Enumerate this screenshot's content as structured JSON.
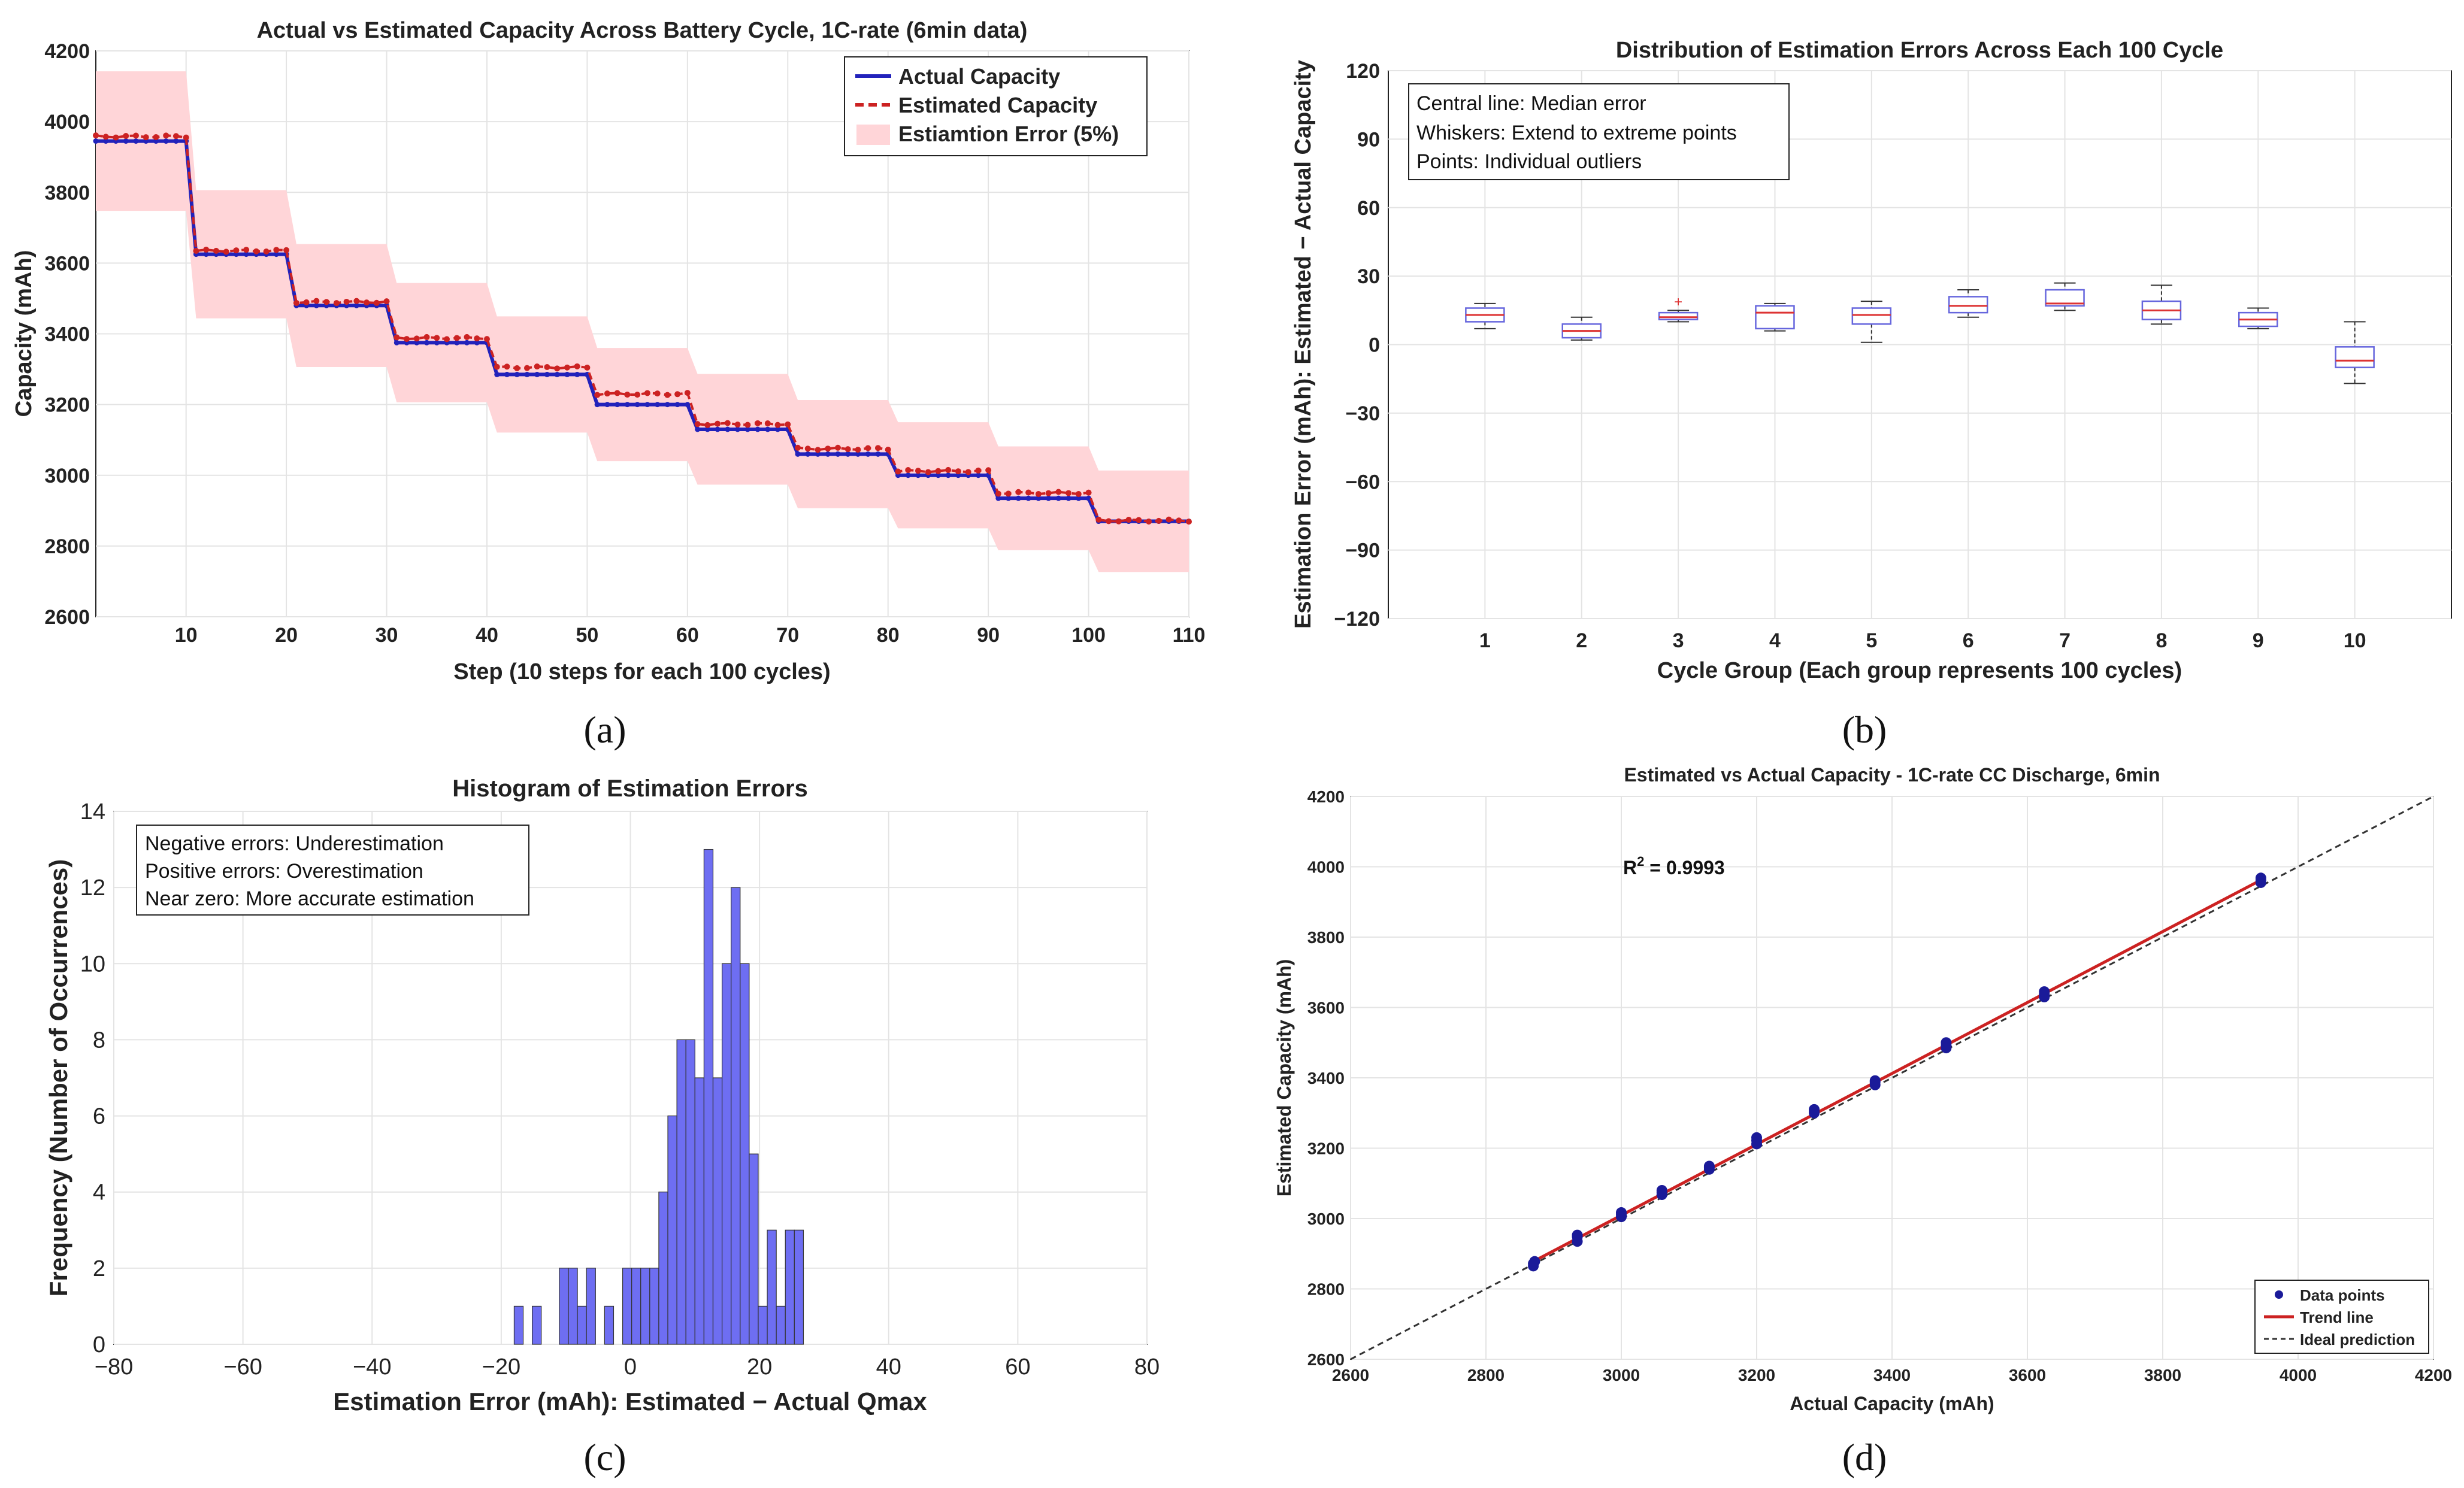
{
  "colors": {
    "blue": "#2222bb",
    "red": "#cc2222",
    "band": "#ffd5d8",
    "grid": "#e4e4e4",
    "hist_fill": "#6e6ef2",
    "box": "#6666dd",
    "median": "#dd3333",
    "ideal": "#333333"
  },
  "chart_data": [
    {
      "type": "line",
      "panel_label": "(a)",
      "title": "Actual vs Estimated Capacity Across Battery Cycle, 1C-rate (6min data)",
      "xlabel": "Step (10 steps for each 100 cycles)",
      "ylabel": "Capacity (mAh)",
      "xlim": [
        1,
        110
      ],
      "ylim": [
        2600,
        4200
      ],
      "xticks": [
        10,
        20,
        30,
        40,
        50,
        60,
        70,
        80,
        90,
        100,
        110
      ],
      "yticks": [
        2600,
        2800,
        3000,
        3200,
        3400,
        3600,
        3800,
        4000,
        4200
      ],
      "legend": {
        "position": "top-right",
        "entries": [
          "Actual Capacity",
          "Estimated Capacity",
          "Estiamtion Error (5%)"
        ]
      },
      "steps_per_group": 10,
      "series": [
        {
          "name": "Actual Capacity",
          "group_values": [
            3945,
            3625,
            3480,
            3375,
            3285,
            3200,
            3130,
            3060,
            3000,
            2935,
            2870
          ]
        },
        {
          "name": "Estimated Capacity",
          "group_values": [
            3958,
            3635,
            3490,
            3388,
            3305,
            3230,
            3145,
            3075,
            3012,
            2950,
            2872
          ]
        }
      ],
      "error_band_pct": 5
    },
    {
      "type": "box",
      "panel_label": "(b)",
      "title": "Distribution of Estimation Errors Across Each 100 Cycle",
      "xlabel": "Cycle Group (Each group represents 100 cycles)",
      "ylabel": "Estimation Error (mAh): Estimated − Actual Capacity",
      "ylim": [
        -120,
        120
      ],
      "yticks": [
        -120,
        -90,
        -60,
        -30,
        0,
        30,
        60,
        90,
        120
      ],
      "categories": [
        "1",
        "2",
        "3",
        "4",
        "5",
        "6",
        "7",
        "8",
        "9",
        "10"
      ],
      "annotation": [
        "Central line: Median error",
        "Whiskers: Extend to extreme points",
        "Points: Individual outliers"
      ],
      "boxes": [
        {
          "min": 7,
          "q1": 10,
          "median": 13,
          "q3": 16,
          "max": 18
        },
        {
          "min": 2,
          "q1": 3,
          "median": 6,
          "q3": 9,
          "max": 12
        },
        {
          "min": 10,
          "q1": 11,
          "median": 12,
          "q3": 14,
          "max": 15,
          "outliers": [
            19
          ]
        },
        {
          "min": 6,
          "q1": 7,
          "median": 14,
          "q3": 17,
          "max": 18
        },
        {
          "min": 1,
          "q1": 9,
          "median": 13,
          "q3": 16,
          "max": 19
        },
        {
          "min": 12,
          "q1": 14,
          "median": 17,
          "q3": 21,
          "max": 24
        },
        {
          "min": 15,
          "q1": 17,
          "median": 18,
          "q3": 24,
          "max": 27
        },
        {
          "min": 9,
          "q1": 11,
          "median": 15,
          "q3": 19,
          "max": 26
        },
        {
          "min": 7,
          "q1": 8,
          "median": 11,
          "q3": 14,
          "max": 16
        },
        {
          "min": -17,
          "q1": -10,
          "median": -7,
          "q3": -1,
          "max": 10
        }
      ]
    },
    {
      "type": "histogram",
      "panel_label": "(c)",
      "title": "Histogram of Estimation Errors",
      "xlabel": "Estimation Error (mAh): Estimated − Actual Qmax",
      "ylabel": "Frequency (Number of Occurrences)",
      "xlim": [
        -80,
        80
      ],
      "ylim": [
        0,
        14
      ],
      "xticks": [
        -80,
        -60,
        -40,
        -20,
        0,
        20,
        40,
        60,
        80
      ],
      "yticks": [
        0,
        2,
        4,
        6,
        8,
        10,
        12,
        14
      ],
      "annotation": [
        "Negative errors: Underestimation",
        "Positive errors: Overestimation",
        "Near zero: More accurate estimation"
      ],
      "bins": [
        {
          "x0": -18,
          "x1": -16.6,
          "count": 1
        },
        {
          "x0": -15.2,
          "x1": -13.8,
          "count": 1
        },
        {
          "x0": -11,
          "x1": -9.6,
          "count": 2
        },
        {
          "x0": -9.6,
          "x1": -8.2,
          "count": 2
        },
        {
          "x0": -8.2,
          "x1": -6.8,
          "count": 1
        },
        {
          "x0": -6.8,
          "x1": -5.4,
          "count": 2
        },
        {
          "x0": -4,
          "x1": -2.6,
          "count": 1
        },
        {
          "x0": -1.2,
          "x1": 0.2,
          "count": 2
        },
        {
          "x0": 0.2,
          "x1": 1.6,
          "count": 2
        },
        {
          "x0": 1.6,
          "x1": 3,
          "count": 2
        },
        {
          "x0": 3,
          "x1": 4.4,
          "count": 2
        },
        {
          "x0": 4.4,
          "x1": 5.8,
          "count": 4
        },
        {
          "x0": 5.8,
          "x1": 7.2,
          "count": 6
        },
        {
          "x0": 7.2,
          "x1": 8.6,
          "count": 8
        },
        {
          "x0": 8.6,
          "x1": 10,
          "count": 8
        },
        {
          "x0": 10,
          "x1": 11.4,
          "count": 7
        },
        {
          "x0": 11.4,
          "x1": 12.8,
          "count": 13
        },
        {
          "x0": 12.8,
          "x1": 14.2,
          "count": 7
        },
        {
          "x0": 14.2,
          "x1": 15.6,
          "count": 10
        },
        {
          "x0": 15.6,
          "x1": 17,
          "count": 12
        },
        {
          "x0": 17,
          "x1": 18.4,
          "count": 10
        },
        {
          "x0": 18.4,
          "x1": 19.8,
          "count": 5
        },
        {
          "x0": 19.8,
          "x1": 21.2,
          "count": 1
        },
        {
          "x0": 21.2,
          "x1": 22.6,
          "count": 3
        },
        {
          "x0": 22.6,
          "x1": 24,
          "count": 1
        },
        {
          "x0": 24,
          "x1": 25.4,
          "count": 3
        },
        {
          "x0": 25.4,
          "x1": 26.8,
          "count": 3
        }
      ]
    },
    {
      "type": "scatter",
      "panel_label": "(d)",
      "title": "Estimated vs Actual Capacity - 1C-rate CC Discharge, 6min",
      "xlabel": "Actual Capacity (mAh)",
      "ylabel": "Estimated Capacity (mAh)",
      "xlim": [
        2600,
        4200
      ],
      "ylim": [
        2600,
        4200
      ],
      "xticks": [
        2600,
        2800,
        3000,
        3200,
        3400,
        3600,
        3800,
        4000,
        4200
      ],
      "yticks": [
        2600,
        2800,
        3000,
        3200,
        3400,
        3600,
        3800,
        4000,
        4200
      ],
      "r2_label": "R",
      "r2_sup": "2",
      "r2_value": " = 0.9993",
      "legend": {
        "position": "bottom-right",
        "entries": [
          "Data points",
          "Trend line",
          "Ideal prediction"
        ]
      },
      "points": [
        [
          2870,
          2865
        ],
        [
          2870,
          2872
        ],
        [
          2872,
          2878
        ],
        [
          2935,
          2935
        ],
        [
          2935,
          2948
        ],
        [
          2935,
          2953
        ],
        [
          3000,
          3005
        ],
        [
          3000,
          3012
        ],
        [
          3000,
          3017
        ],
        [
          3060,
          3068
        ],
        [
          3060,
          3075
        ],
        [
          3060,
          3080
        ],
        [
          3130,
          3140
        ],
        [
          3130,
          3145
        ],
        [
          3130,
          3149
        ],
        [
          3200,
          3212
        ],
        [
          3200,
          3222
        ],
        [
          3200,
          3230
        ],
        [
          3285,
          3300
        ],
        [
          3285,
          3305
        ],
        [
          3285,
          3310
        ],
        [
          3375,
          3380
        ],
        [
          3375,
          3388
        ],
        [
          3375,
          3392
        ],
        [
          3480,
          3485
        ],
        [
          3480,
          3492
        ],
        [
          3480,
          3500
        ],
        [
          3625,
          3630
        ],
        [
          3625,
          3638
        ],
        [
          3625,
          3645
        ],
        [
          3945,
          3955
        ],
        [
          3945,
          3962
        ],
        [
          3945,
          3968
        ]
      ],
      "trend": {
        "x": [
          2870,
          3945
        ],
        "y": [
          2878,
          3962
        ]
      }
    }
  ]
}
